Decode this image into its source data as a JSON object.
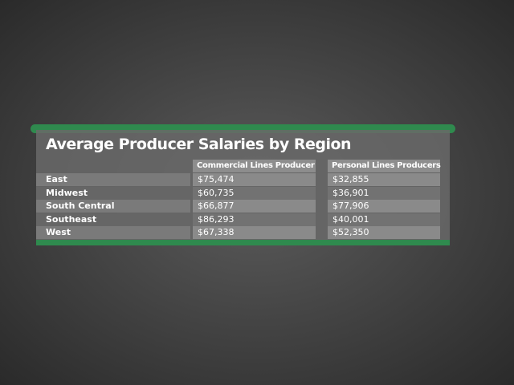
{
  "title": "Average Producer Salaries by Region",
  "table": {
    "columns": [
      "Commercial Lines Producer",
      "Personal Lines Producers"
    ],
    "rows": [
      [
        "East",
        "$75,474",
        "$32,855"
      ],
      [
        "Midwest",
        "$60,735",
        "$36,901"
      ],
      [
        "South Central",
        "$66,877",
        "$77,906"
      ],
      [
        "Southeast",
        "$86,293",
        "$40,001"
      ],
      [
        "West",
        "$67,338",
        "$52,350"
      ]
    ]
  }
}
